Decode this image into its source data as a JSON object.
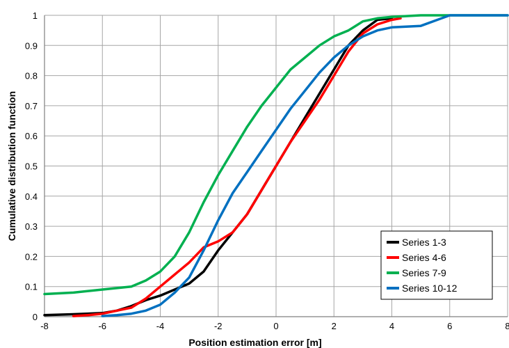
{
  "chart_data": {
    "type": "line",
    "title": "",
    "xlabel": "Position estimation error [m]",
    "ylabel": "Cumulative distribution function",
    "xlim": [
      -8,
      8
    ],
    "ylim": [
      0,
      1
    ],
    "x_ticks": [
      -8,
      -6,
      -4,
      -2,
      0,
      2,
      4,
      6,
      8
    ],
    "y_ticks": [
      0,
      0.1,
      0.2,
      0.3,
      0.4,
      0.5,
      0.6,
      0.7,
      0.8,
      0.9,
      1
    ],
    "x_tick_labels": [
      "-8",
      "-6",
      "-4",
      "-2",
      "0",
      "2",
      "4",
      "6",
      "8"
    ],
    "y_tick_labels": [
      "0",
      "0.1",
      "0.2",
      "0.3",
      "0.4",
      "0.5",
      "0.6",
      "0.7",
      "0.8",
      "0.9",
      "1"
    ],
    "grid": true,
    "legend_position": "bottom-right",
    "series": [
      {
        "name": "Series 1-3",
        "color": "#000000",
        "x": [
          -8,
          -7,
          -6,
          -5.5,
          -5,
          -4.5,
          -4,
          -3.5,
          -3,
          -2.5,
          -2,
          -1.5,
          -1,
          -0.5,
          0,
          0.5,
          1,
          1.5,
          2,
          2.5,
          3,
          3.5,
          4
        ],
        "y": [
          0.005,
          0.008,
          0.012,
          0.02,
          0.035,
          0.055,
          0.07,
          0.09,
          0.11,
          0.15,
          0.22,
          0.28,
          0.34,
          0.42,
          0.5,
          0.58,
          0.66,
          0.74,
          0.82,
          0.9,
          0.95,
          0.985,
          0.99
        ]
      },
      {
        "name": "Series 4-6",
        "color": "#ff0000",
        "x": [
          -7,
          -6.5,
          -6,
          -5.5,
          -5,
          -4.5,
          -4,
          -3.5,
          -3,
          -2.5,
          -2,
          -1.5,
          -1,
          -0.5,
          0,
          0.5,
          1,
          1.5,
          2,
          2.5,
          3,
          3.5,
          4,
          4.3
        ],
        "y": [
          0.002,
          0.005,
          0.01,
          0.02,
          0.03,
          0.06,
          0.1,
          0.14,
          0.18,
          0.23,
          0.25,
          0.28,
          0.34,
          0.42,
          0.5,
          0.58,
          0.65,
          0.72,
          0.8,
          0.88,
          0.94,
          0.97,
          0.985,
          0.99
        ]
      },
      {
        "name": "Series 7-9",
        "color": "#00b050",
        "x": [
          -8,
          -7,
          -6,
          -5,
          -4.5,
          -4,
          -3.5,
          -3,
          -2.5,
          -2,
          -1.5,
          -1,
          -0.5,
          0,
          0.5,
          1,
          1.5,
          2,
          2.5,
          3,
          3.5,
          4,
          5,
          8
        ],
        "y": [
          0.075,
          0.08,
          0.09,
          0.1,
          0.12,
          0.15,
          0.2,
          0.28,
          0.38,
          0.47,
          0.55,
          0.63,
          0.7,
          0.76,
          0.82,
          0.86,
          0.9,
          0.93,
          0.95,
          0.98,
          0.99,
          0.995,
          1,
          1
        ]
      },
      {
        "name": "Series 10-12",
        "color": "#0070c0",
        "x": [
          -6,
          -5.5,
          -5,
          -4.5,
          -4,
          -3.5,
          -3,
          -2.5,
          -2,
          -1.5,
          -1,
          -0.5,
          0,
          0.5,
          1,
          1.5,
          2,
          2.5,
          3,
          3.5,
          4,
          5,
          6,
          8
        ],
        "y": [
          0.002,
          0.005,
          0.01,
          0.02,
          0.04,
          0.08,
          0.13,
          0.22,
          0.32,
          0.41,
          0.48,
          0.55,
          0.62,
          0.69,
          0.75,
          0.81,
          0.86,
          0.9,
          0.93,
          0.95,
          0.96,
          0.965,
          1,
          1
        ]
      }
    ]
  }
}
